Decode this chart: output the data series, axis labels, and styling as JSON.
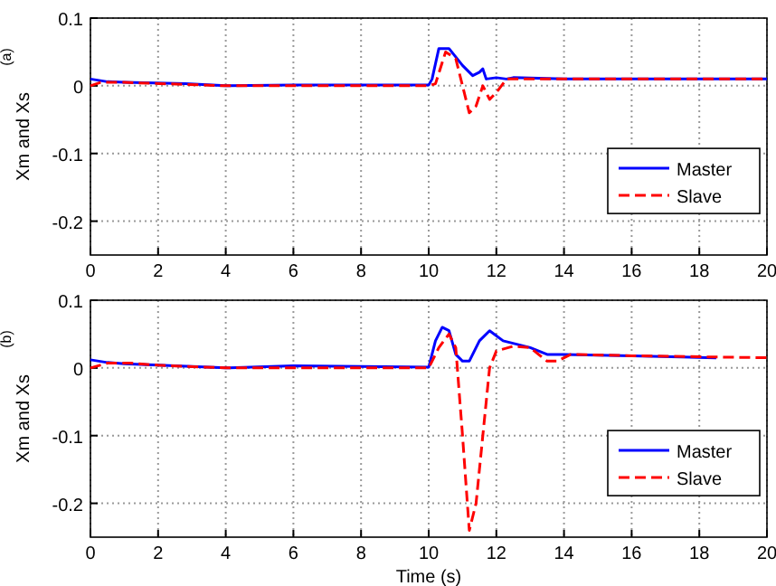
{
  "chart_data": [
    {
      "type": "line",
      "ylabel": "Xm and Xs",
      "annotations": [
        "(a)"
      ],
      "xlim": [
        0,
        20
      ],
      "xticks": [
        0,
        2,
        4,
        6,
        8,
        10,
        12,
        14,
        16,
        18,
        20
      ],
      "ylim": [
        -0.25,
        0.1
      ],
      "yticks": [
        0.1,
        0,
        -0.1,
        -0.2
      ],
      "grid": true,
      "legend": "right",
      "series": [
        {
          "name": "Master",
          "color": "#0000ff",
          "line_style": "solid",
          "x": [
            0,
            0.5,
            1,
            2.8,
            4,
            6,
            8,
            10,
            10.1,
            10.3,
            10.6,
            11,
            11.3,
            11.5,
            11.6,
            11.7,
            12,
            12.3,
            12.5,
            14,
            20
          ],
          "values": [
            0.01,
            0.006,
            0.005,
            0.003,
            0,
            0.001,
            0.001,
            0.001,
            0.01,
            0.055,
            0.055,
            0.03,
            0.015,
            0.02,
            0.025,
            0.01,
            0.012,
            0.01,
            0.012,
            0.01,
            0.01
          ]
        },
        {
          "name": "Slave",
          "color": "#ff0000",
          "line_style": "dashed",
          "x": [
            0,
            0.3,
            1,
            4,
            10,
            10.2,
            10.5,
            10.8,
            11,
            11.2,
            11.4,
            11.6,
            11.8,
            12,
            12.3,
            14,
            20
          ],
          "values": [
            0,
            0.005,
            0.005,
            0,
            0,
            0.003,
            0.05,
            0.04,
            0,
            -0.04,
            -0.03,
            0,
            -0.02,
            -0.01,
            0.01,
            0.01,
            0.01
          ]
        }
      ]
    },
    {
      "type": "line",
      "ylabel": "Xm and Xs",
      "xlabel": "Time (s)",
      "annotations": [
        "(b)"
      ],
      "xlim": [
        0,
        20
      ],
      "xticks": [
        0,
        2,
        4,
        6,
        8,
        10,
        12,
        14,
        16,
        18,
        20
      ],
      "ylim": [
        -0.25,
        0.1
      ],
      "yticks": [
        0.1,
        0,
        -0.1,
        -0.2
      ],
      "grid": true,
      "legend": "right",
      "series": [
        {
          "name": "Master",
          "color": "#0000ff",
          "line_style": "solid",
          "x": [
            0,
            0.5,
            1,
            4,
            6,
            10,
            10.2,
            10.4,
            10.6,
            10.8,
            11,
            11.2,
            11.5,
            11.8,
            12.2,
            12.6,
            13,
            13.5,
            14,
            16,
            18.5
          ],
          "values": [
            0.012,
            0.008,
            0.006,
            0,
            0.003,
            0.001,
            0.04,
            0.06,
            0.055,
            0.02,
            0.01,
            0.01,
            0.04,
            0.055,
            0.04,
            0.035,
            0.03,
            0.02,
            0.02,
            0.018,
            0.015
          ]
        },
        {
          "name": "Slave",
          "color": "#ff0000",
          "line_style": "dashed",
          "x": [
            0,
            0.5,
            1.2,
            2,
            4,
            10,
            10.3,
            10.6,
            10.8,
            11,
            11.2,
            11.4,
            11.6,
            11.8,
            12,
            12.5,
            13,
            13.5,
            13.8,
            14.2,
            16,
            20
          ],
          "values": [
            0,
            0.007,
            0.007,
            0.004,
            0,
            0,
            0.03,
            0.05,
            0.03,
            -0.1,
            -0.24,
            -0.2,
            -0.1,
            0,
            0.025,
            0.032,
            0.03,
            0.01,
            0.01,
            0.02,
            0.018,
            0.015
          ]
        }
      ]
    }
  ]
}
